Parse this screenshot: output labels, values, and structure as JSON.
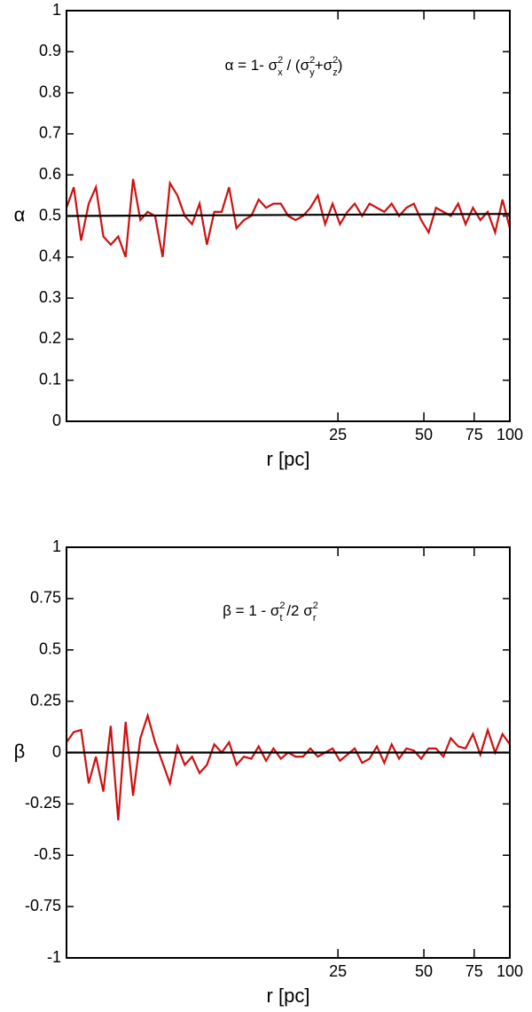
{
  "chart_data": [
    {
      "type": "line",
      "xscale": "log",
      "xlabel": "r [pc]",
      "ylabel": "α",
      "annotation": [
        {
          "t": "α = 1- σ",
          "s": "base"
        },
        {
          "t": "2",
          "s": "sup"
        },
        {
          "t": "x",
          "s": "sub"
        },
        {
          "t": " / (σ",
          "s": "base"
        },
        {
          "t": "2",
          "s": "sup"
        },
        {
          "t": "y",
          "s": "sub"
        },
        {
          "t": "+σ",
          "s": "base"
        },
        {
          "t": "2",
          "s": "sup"
        },
        {
          "t": "z",
          "s": "sub"
        },
        {
          "t": ")",
          "s": "base"
        }
      ],
      "xlim": [
        2.8,
        100
      ],
      "xticks": [
        25,
        50,
        75,
        100
      ],
      "ylim": [
        0,
        1
      ],
      "yticks": [
        0,
        0.1,
        0.2,
        0.3,
        0.4,
        0.5,
        0.6,
        0.7,
        0.8,
        0.9,
        1
      ],
      "series": [
        {
          "color": "#cc1111",
          "x": [
            2.8,
            2.97,
            3.15,
            3.35,
            3.55,
            3.77,
            4.0,
            4.25,
            4.51,
            4.79,
            5.08,
            5.39,
            5.72,
            6.08,
            6.45,
            6.85,
            7.27,
            7.71,
            8.19,
            8.69,
            9.22,
            9.79,
            10.39,
            11.03,
            11.71,
            12.43,
            13.19,
            14.0,
            14.86,
            15.77,
            16.74,
            17.77,
            18.86,
            20.02,
            21.25,
            22.55,
            23.94,
            25.41,
            26.97,
            28.62,
            30.38,
            32.25,
            34.23,
            36.33,
            38.56,
            40.93,
            43.44,
            46.11,
            48.94,
            51.95,
            55.14,
            58.52,
            62.12,
            65.93,
            69.98,
            74.28,
            78.84,
            83.68,
            88.82,
            94.27,
            100
          ],
          "values": [
            0.52,
            0.57,
            0.44,
            0.53,
            0.57,
            0.45,
            0.43,
            0.45,
            0.4,
            0.59,
            0.49,
            0.51,
            0.5,
            0.4,
            0.58,
            0.55,
            0.5,
            0.48,
            0.53,
            0.43,
            0.51,
            0.51,
            0.57,
            0.47,
            0.49,
            0.5,
            0.54,
            0.52,
            0.53,
            0.53,
            0.5,
            0.49,
            0.5,
            0.52,
            0.55,
            0.48,
            0.53,
            0.48,
            0.51,
            0.53,
            0.5,
            0.53,
            0.52,
            0.51,
            0.53,
            0.5,
            0.52,
            0.53,
            0.49,
            0.46,
            0.52,
            0.51,
            0.5,
            0.53,
            0.48,
            0.52,
            0.49,
            0.51,
            0.46,
            0.54,
            0.47
          ]
        },
        {
          "color": "#000000",
          "x": [
            2.8,
            100
          ],
          "values": [
            0.5,
            0.505
          ]
        }
      ]
    },
    {
      "type": "line",
      "xscale": "log",
      "xlabel": "r [pc]",
      "ylabel": "β",
      "annotation": [
        {
          "t": "β = 1 - σ",
          "s": "base"
        },
        {
          "t": "2",
          "s": "sup"
        },
        {
          "t": "t",
          "s": "sub"
        },
        {
          "t": " /2 σ",
          "s": "base"
        },
        {
          "t": "2",
          "s": "sup"
        },
        {
          "t": "r",
          "s": "sub"
        }
      ],
      "xlim": [
        2.8,
        100
      ],
      "xticks": [
        25,
        50,
        75,
        100
      ],
      "ylim": [
        -1,
        1
      ],
      "yticks": [
        -1,
        -0.75,
        -0.5,
        -0.25,
        0,
        0.25,
        0.5,
        0.75,
        1
      ],
      "series": [
        {
          "color": "#cc1111",
          "x": [
            2.8,
            2.97,
            3.15,
            3.35,
            3.55,
            3.77,
            4.0,
            4.25,
            4.51,
            4.79,
            5.08,
            5.39,
            5.72,
            6.08,
            6.45,
            6.85,
            7.27,
            7.71,
            8.19,
            8.69,
            9.22,
            9.79,
            10.39,
            11.03,
            11.71,
            12.43,
            13.19,
            14.0,
            14.86,
            15.77,
            16.74,
            17.77,
            18.86,
            20.02,
            21.25,
            22.55,
            23.94,
            25.41,
            26.97,
            28.62,
            30.38,
            32.25,
            34.23,
            36.33,
            38.56,
            40.93,
            43.44,
            46.11,
            48.94,
            51.95,
            55.14,
            58.52,
            62.12,
            65.93,
            69.98,
            74.28,
            78.84,
            83.68,
            88.82,
            94.27,
            100
          ],
          "values": [
            0.05,
            0.1,
            0.11,
            -0.15,
            -0.02,
            -0.19,
            0.13,
            -0.33,
            0.15,
            -0.21,
            0.07,
            0.18,
            0.05,
            -0.05,
            -0.15,
            0.03,
            -0.06,
            -0.02,
            -0.1,
            -0.06,
            0.04,
            0.0,
            0.05,
            -0.06,
            -0.02,
            -0.03,
            0.03,
            -0.04,
            0.02,
            -0.03,
            0.0,
            -0.02,
            -0.02,
            0.02,
            -0.02,
            0.0,
            0.02,
            -0.04,
            -0.01,
            0.02,
            -0.05,
            -0.03,
            0.03,
            -0.05,
            0.04,
            -0.03,
            0.02,
            0.01,
            -0.03,
            0.02,
            0.02,
            -0.02,
            0.07,
            0.03,
            0.02,
            0.09,
            -0.01,
            0.11,
            0.0,
            0.09,
            0.04
          ]
        },
        {
          "color": "#000000",
          "x": [
            2.8,
            100
          ],
          "values": [
            0,
            0
          ]
        }
      ]
    }
  ]
}
